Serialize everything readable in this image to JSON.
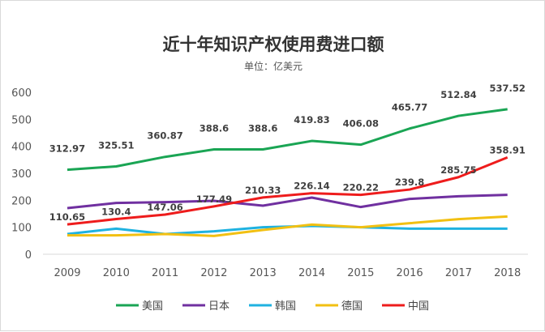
{
  "chart_data": {
    "type": "line",
    "title": "近十年知识产权使用费进口额",
    "subtitle": "单位：亿美元",
    "categories": [
      "2009",
      "2010",
      "2011",
      "2012",
      "2013",
      "2014",
      "2015",
      "2016",
      "2017",
      "2018"
    ],
    "ylim": [
      0,
      600
    ],
    "yticks": [
      0,
      100,
      200,
      300,
      400,
      500,
      600
    ],
    "grid": false,
    "legend": "bottom",
    "series": [
      {
        "name": "美国",
        "color": "#1aa554",
        "values": [
          312.97,
          325.51,
          360.87,
          388.6,
          388.6,
          419.83,
          406.08,
          465.77,
          512.84,
          537.52
        ],
        "labels": [
          "312.97",
          "325.51",
          "360.87",
          "388.6",
          "388.6",
          "419.83",
          "406.08",
          "465.77",
          "512.84",
          "537.52"
        ]
      },
      {
        "name": "日本",
        "color": "#7030a0",
        "values": [
          171,
          190,
          193,
          198,
          180,
          210,
          175,
          205,
          215,
          220
        ]
      },
      {
        "name": "韩国",
        "color": "#1fb2e0",
        "values": [
          75,
          95,
          75,
          85,
          100,
          105,
          100,
          95,
          95,
          95
        ]
      },
      {
        "name": "德国",
        "color": "#f2c012",
        "values": [
          70,
          70,
          75,
          68,
          90,
          110,
          100,
          115,
          130,
          140
        ]
      },
      {
        "name": "中国",
        "color": "#ee1c1c",
        "values": [
          110.65,
          130.4,
          147.06,
          177.49,
          210.33,
          226.14,
          220.22,
          239.8,
          285.75,
          358.91
        ],
        "labels": [
          "110.65",
          "130.4",
          "147.06",
          "177.49",
          "210.33",
          "226.14",
          "220.22",
          "239.8",
          "285.75",
          "358.91"
        ]
      }
    ]
  }
}
